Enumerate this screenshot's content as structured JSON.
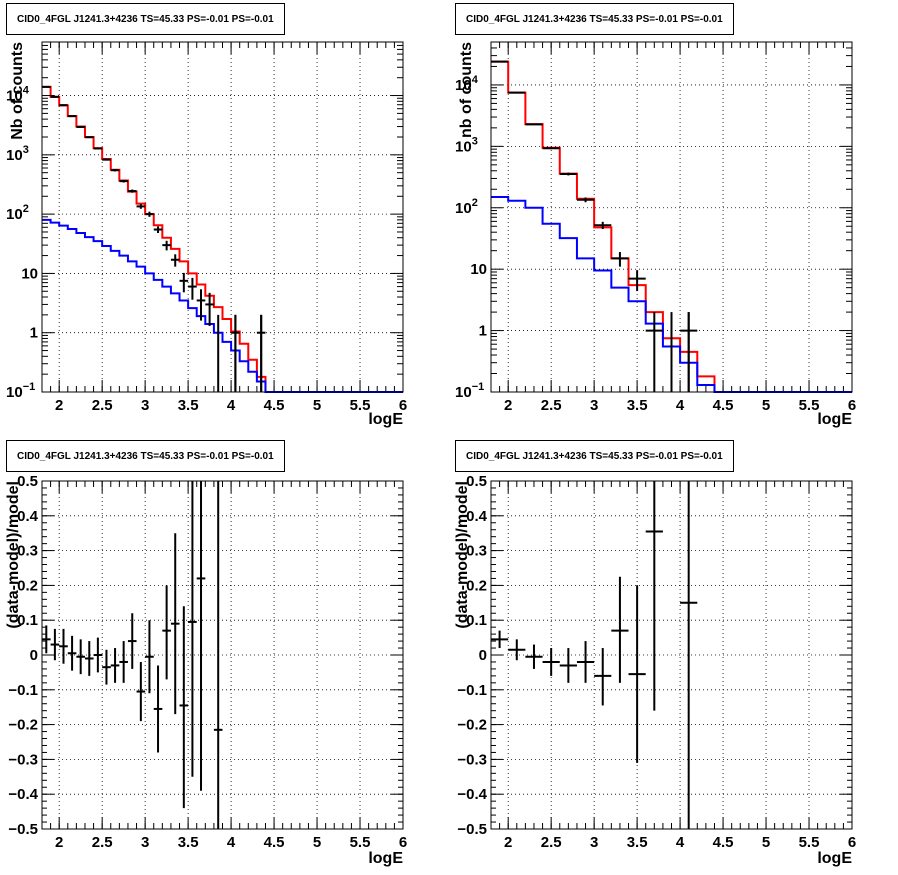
{
  "chart_data": [
    {
      "type": "step",
      "title": "CID0_4FGL J1241.3+4236 TS=45.33 PS=-0.01 PS=-0.01",
      "xlabel": "logE",
      "ylabel": "Nb of counts",
      "xlim": [
        1.8,
        6.0
      ],
      "ylim": [
        0.1,
        80000
      ],
      "yscale": "log",
      "xticks": [
        2,
        2.5,
        3,
        3.5,
        4,
        4.5,
        5,
        5.5,
        6
      ],
      "yticks": [
        {
          "v": 0.1,
          "t": "10",
          "sup": "−1"
        },
        {
          "v": 1,
          "t": "1",
          "sup": ""
        },
        {
          "v": 10,
          "t": "10",
          "sup": ""
        },
        {
          "v": 100,
          "t": "10",
          "sup": "2"
        },
        {
          "v": 1000,
          "t": "10",
          "sup": "3"
        },
        {
          "v": 10000,
          "t": "10",
          "sup": "4"
        }
      ],
      "grid": true,
      "bin_edges": [
        1.8,
        1.9,
        2.0,
        2.1,
        2.2,
        2.3,
        2.4,
        2.5,
        2.6,
        2.7,
        2.8,
        2.9,
        3.0,
        3.1,
        3.2,
        3.3,
        3.4,
        3.5,
        3.6,
        3.7,
        3.8,
        3.9,
        4.0,
        4.1,
        4.2,
        4.3,
        4.4,
        4.5,
        4.6,
        4.7,
        4.8,
        4.9,
        5.0,
        5.1,
        5.2,
        5.3,
        5.4,
        5.5,
        5.6,
        5.7,
        5.8,
        5.9,
        6.0
      ],
      "series": [
        {
          "color": "#ff0000",
          "values": [
            14000,
            9500,
            6800,
            4500,
            3000,
            2000,
            1300,
            850,
            560,
            370,
            240,
            150,
            100,
            65,
            40,
            26,
            16,
            10,
            6.5,
            4.2,
            2.7,
            1.7,
            1.05,
            0.65,
            0.35,
            0.18,
            0.1,
            0.1,
            0.1,
            0.1,
            0.1,
            0.1,
            0.1,
            0.1,
            0.1,
            0.1,
            0.1,
            0.1,
            0.1,
            0.1,
            0.1,
            0.1
          ]
        },
        {
          "color": "#0000ff",
          "values": [
            80,
            72,
            64,
            56,
            48,
            41,
            35,
            29,
            24,
            20,
            16,
            13,
            10,
            7.8,
            6,
            4.6,
            3.5,
            2.6,
            1.9,
            1.4,
            1.0,
            0.7,
            0.5,
            0.33,
            0.22,
            0.15,
            0.1,
            0.1,
            0.1,
            0.1,
            0.1,
            0.1,
            0.1,
            0.1,
            0.1,
            0.1,
            0.1,
            0.1,
            0.1,
            0.1,
            0.1,
            0.1
          ]
        }
      ],
      "points": [
        {
          "x": 1.85,
          "y": 14000,
          "xerr": 0.05,
          "ylo": 13900,
          "yhi": 14100
        },
        {
          "x": 1.95,
          "y": 9500,
          "xerr": 0.05,
          "ylo": 9400,
          "yhi": 9600
        },
        {
          "x": 2.05,
          "y": 6900,
          "xerr": 0.05,
          "ylo": 6800,
          "yhi": 7000
        },
        {
          "x": 2.15,
          "y": 4500,
          "xerr": 0.05,
          "ylo": 4430,
          "yhi": 4570
        },
        {
          "x": 2.25,
          "y": 2950,
          "xerr": 0.05,
          "ylo": 2900,
          "yhi": 3000
        },
        {
          "x": 2.35,
          "y": 1980,
          "xerr": 0.05,
          "ylo": 1940,
          "yhi": 2020
        },
        {
          "x": 2.45,
          "y": 1280,
          "xerr": 0.05,
          "ylo": 1250,
          "yhi": 1310
        },
        {
          "x": 2.55,
          "y": 830,
          "xerr": 0.05,
          "ylo": 800,
          "yhi": 860
        },
        {
          "x": 2.65,
          "y": 550,
          "xerr": 0.05,
          "ylo": 525,
          "yhi": 575
        },
        {
          "x": 2.75,
          "y": 360,
          "xerr": 0.05,
          "ylo": 341,
          "yhi": 379
        },
        {
          "x": 2.85,
          "y": 245,
          "xerr": 0.05,
          "ylo": 230,
          "yhi": 260
        },
        {
          "x": 2.95,
          "y": 135,
          "xerr": 0.05,
          "ylo": 123,
          "yhi": 147
        },
        {
          "x": 3.05,
          "y": 100,
          "xerr": 0.05,
          "ylo": 90,
          "yhi": 110
        },
        {
          "x": 3.15,
          "y": 55,
          "xerr": 0.05,
          "ylo": 48,
          "yhi": 62
        },
        {
          "x": 3.25,
          "y": 30,
          "xerr": 0.05,
          "ylo": 24.5,
          "yhi": 35.5
        },
        {
          "x": 3.35,
          "y": 17,
          "xerr": 0.05,
          "ylo": 13,
          "yhi": 21
        },
        {
          "x": 3.45,
          "y": 7.5,
          "xerr": 0.05,
          "ylo": 4.8,
          "yhi": 10.2
        },
        {
          "x": 3.55,
          "y": 6.0,
          "xerr": 0.05,
          "ylo": 3.6,
          "yhi": 8.4
        },
        {
          "x": 3.65,
          "y": 3.5,
          "xerr": 0.05,
          "ylo": 1.6,
          "yhi": 5.4
        },
        {
          "x": 3.75,
          "y": 3.0,
          "xerr": 0.05,
          "ylo": 1.3,
          "yhi": 4.7
        },
        {
          "x": 4.05,
          "y": 1.0,
          "xerr": 0.05,
          "ylo": 0.1,
          "yhi": 2.0
        },
        {
          "x": 4.35,
          "y": 1.0,
          "xerr": 0.05,
          "ylo": 0.1,
          "yhi": 2.0
        }
      ],
      "stems": [
        3.85,
        4.05,
        4.35
      ]
    },
    {
      "type": "step",
      "title": "CID0_4FGL J1241.3+4236 TS=45.33 PS=-0.01 PS=-0.01",
      "xlabel": "logE",
      "ylabel": "nb of counts",
      "xlim": [
        1.8,
        6.0
      ],
      "ylim": [
        0.1,
        50000
      ],
      "yscale": "log",
      "xticks": [
        2,
        2.5,
        3,
        3.5,
        4,
        4.5,
        5,
        5.5,
        6
      ],
      "yticks": [
        {
          "v": 0.1,
          "t": "10",
          "sup": "−1"
        },
        {
          "v": 1,
          "t": "1",
          "sup": ""
        },
        {
          "v": 10,
          "t": "10",
          "sup": ""
        },
        {
          "v": 100,
          "t": "10",
          "sup": "2"
        },
        {
          "v": 1000,
          "t": "10",
          "sup": "3"
        },
        {
          "v": 10000,
          "t": "10",
          "sup": "4"
        }
      ],
      "grid": true,
      "bin_edges": [
        1.8,
        2.0,
        2.2,
        2.4,
        2.6,
        2.8,
        3.0,
        3.2,
        3.4,
        3.6,
        3.8,
        4.0,
        4.2,
        4.4,
        4.6,
        4.8,
        5.0,
        5.2,
        5.4,
        5.6,
        5.8,
        6.0
      ],
      "series": [
        {
          "color": "#ff0000",
          "values": [
            24000,
            7500,
            2300,
            950,
            360,
            140,
            48,
            15,
            5.5,
            2.0,
            0.75,
            0.45,
            0.18,
            0.1,
            0.1,
            0.1,
            0.1,
            0.1,
            0.1,
            0.1,
            0.1
          ]
        },
        {
          "color": "#0000ff",
          "values": [
            150,
            130,
            100,
            55,
            32,
            15,
            9.5,
            5.0,
            3.0,
            1.3,
            0.55,
            0.3,
            0.13,
            0.1,
            0.1,
            0.1,
            0.1,
            0.1,
            0.1,
            0.1,
            0.1
          ]
        }
      ],
      "points": [
        {
          "x": 1.9,
          "y": 24000,
          "xerr": 0.1,
          "ylo": 23850,
          "yhi": 24150
        },
        {
          "x": 2.1,
          "y": 7500,
          "xerr": 0.1,
          "ylo": 7410,
          "yhi": 7590
        },
        {
          "x": 2.3,
          "y": 2280,
          "xerr": 0.1,
          "ylo": 2230,
          "yhi": 2330
        },
        {
          "x": 2.5,
          "y": 930,
          "xerr": 0.1,
          "ylo": 900,
          "yhi": 960
        },
        {
          "x": 2.7,
          "y": 355,
          "xerr": 0.1,
          "ylo": 336,
          "yhi": 374
        },
        {
          "x": 2.9,
          "y": 135,
          "xerr": 0.1,
          "ylo": 123,
          "yhi": 147
        },
        {
          "x": 3.1,
          "y": 52,
          "xerr": 0.1,
          "ylo": 45,
          "yhi": 59
        },
        {
          "x": 3.3,
          "y": 15,
          "xerr": 0.1,
          "ylo": 11,
          "yhi": 19
        },
        {
          "x": 3.5,
          "y": 7.0,
          "xerr": 0.1,
          "ylo": 4.4,
          "yhi": 9.6
        },
        {
          "x": 3.7,
          "y": 1.0,
          "xerr": 0.1,
          "ylo": 0.1,
          "yhi": 2.0
        },
        {
          "x": 4.1,
          "y": 1.0,
          "xerr": 0.1,
          "ylo": 0.1,
          "yhi": 2.0
        }
      ],
      "stems": [
        3.9,
        4.1
      ]
    },
    {
      "type": "scatter",
      "title": "CID0_4FGL J1241.3+4236 TS=45.33 PS=-0.01 PS=-0.01",
      "xlabel": "logE",
      "ylabel": "(data-model)/model",
      "xlim": [
        1.8,
        6.0
      ],
      "ylim": [
        -0.5,
        0.5
      ],
      "yscale": "linear",
      "xticks": [
        2,
        2.5,
        3,
        3.5,
        4,
        4.5,
        5,
        5.5,
        6
      ],
      "yticks": [
        {
          "v": -0.5,
          "t": "−0.5",
          "sup": ""
        },
        {
          "v": -0.4,
          "t": "−0.4",
          "sup": ""
        },
        {
          "v": -0.3,
          "t": "−0.3",
          "sup": ""
        },
        {
          "v": -0.2,
          "t": "−0.2",
          "sup": ""
        },
        {
          "v": -0.1,
          "t": "−0.1",
          "sup": ""
        },
        {
          "v": 0,
          "t": "0",
          "sup": ""
        },
        {
          "v": 0.1,
          "t": "0.1",
          "sup": ""
        },
        {
          "v": 0.2,
          "t": "0.2",
          "sup": ""
        },
        {
          "v": 0.3,
          "t": "0.3",
          "sup": ""
        },
        {
          "v": 0.4,
          "t": "0.4",
          "sup": ""
        },
        {
          "v": 0.5,
          "t": "0.5",
          "sup": ""
        }
      ],
      "grid": true,
      "points": [
        {
          "x": 1.85,
          "y": 0.045,
          "xerr": 0.05,
          "ylo": 0.005,
          "yhi": 0.085
        },
        {
          "x": 1.95,
          "y": 0.03,
          "xerr": 0.05,
          "ylo": -0.015,
          "yhi": 0.075
        },
        {
          "x": 2.05,
          "y": 0.025,
          "xerr": 0.05,
          "ylo": -0.025,
          "yhi": 0.075
        },
        {
          "x": 2.15,
          "y": 0.005,
          "xerr": 0.05,
          "ylo": -0.045,
          "yhi": 0.055
        },
        {
          "x": 2.25,
          "y": -0.005,
          "xerr": 0.05,
          "ylo": -0.055,
          "yhi": 0.045
        },
        {
          "x": 2.35,
          "y": -0.01,
          "xerr": 0.05,
          "ylo": -0.06,
          "yhi": 0.04
        },
        {
          "x": 2.45,
          "y": 0.0,
          "xerr": 0.05,
          "ylo": -0.05,
          "yhi": 0.05
        },
        {
          "x": 2.55,
          "y": -0.035,
          "xerr": 0.05,
          "ylo": -0.085,
          "yhi": 0.015
        },
        {
          "x": 2.65,
          "y": -0.03,
          "xerr": 0.05,
          "ylo": -0.08,
          "yhi": 0.02
        },
        {
          "x": 2.75,
          "y": -0.02,
          "xerr": 0.05,
          "ylo": -0.08,
          "yhi": 0.04
        },
        {
          "x": 2.85,
          "y": 0.04,
          "xerr": 0.05,
          "ylo": -0.04,
          "yhi": 0.12
        },
        {
          "x": 2.95,
          "y": -0.105,
          "xerr": 0.05,
          "ylo": -0.19,
          "yhi": -0.02
        },
        {
          "x": 3.05,
          "y": -0.005,
          "xerr": 0.05,
          "ylo": -0.11,
          "yhi": 0.1
        },
        {
          "x": 3.15,
          "y": -0.155,
          "xerr": 0.05,
          "ylo": -0.28,
          "yhi": -0.03
        },
        {
          "x": 3.25,
          "y": 0.07,
          "xerr": 0.05,
          "ylo": -0.07,
          "yhi": 0.2
        },
        {
          "x": 3.35,
          "y": 0.09,
          "xerr": 0.05,
          "ylo": -0.17,
          "yhi": 0.35
        },
        {
          "x": 3.45,
          "y": -0.145,
          "xerr": 0.05,
          "ylo": -0.44,
          "yhi": 0.14
        },
        {
          "x": 3.55,
          "y": 0.095,
          "xerr": 0.05,
          "ylo": -0.35,
          "yhi": 0.5
        },
        {
          "x": 3.65,
          "y": 0.22,
          "xerr": 0.05,
          "ylo": -0.39,
          "yhi": 0.5
        },
        {
          "x": 3.85,
          "y": -0.215,
          "xerr": 0.05,
          "ylo": -0.5,
          "yhi": 0.5
        }
      ]
    },
    {
      "type": "scatter",
      "title": "CID0_4FGL J1241.3+4236 TS=45.33 PS=-0.01 PS=-0.01",
      "xlabel": "logE",
      "ylabel": "(data-model)/model",
      "xlim": [
        1.8,
        6.0
      ],
      "ylim": [
        -0.5,
        0.5
      ],
      "yscale": "linear",
      "xticks": [
        2,
        2.5,
        3,
        3.5,
        4,
        4.5,
        5,
        5.5,
        6
      ],
      "yticks": [
        {
          "v": -0.5,
          "t": "−0.5",
          "sup": ""
        },
        {
          "v": -0.4,
          "t": "−0.4",
          "sup": ""
        },
        {
          "v": -0.3,
          "t": "−0.3",
          "sup": ""
        },
        {
          "v": -0.2,
          "t": "−0.2",
          "sup": ""
        },
        {
          "v": -0.1,
          "t": "−0.1",
          "sup": ""
        },
        {
          "v": 0,
          "t": "0",
          "sup": ""
        },
        {
          "v": 0.1,
          "t": "0.1",
          "sup": ""
        },
        {
          "v": 0.2,
          "t": "0.2",
          "sup": ""
        },
        {
          "v": 0.3,
          "t": "0.3",
          "sup": ""
        },
        {
          "v": 0.4,
          "t": "0.4",
          "sup": ""
        },
        {
          "v": 0.5,
          "t": "0.5",
          "sup": ""
        }
      ],
      "grid": true,
      "points": [
        {
          "x": 1.9,
          "y": 0.045,
          "xerr": 0.1,
          "ylo": 0.02,
          "yhi": 0.07
        },
        {
          "x": 2.1,
          "y": 0.015,
          "xerr": 0.1,
          "ylo": -0.015,
          "yhi": 0.045
        },
        {
          "x": 2.3,
          "y": -0.005,
          "xerr": 0.1,
          "ylo": -0.04,
          "yhi": 0.03
        },
        {
          "x": 2.5,
          "y": -0.02,
          "xerr": 0.1,
          "ylo": -0.06,
          "yhi": 0.02
        },
        {
          "x": 2.7,
          "y": -0.03,
          "xerr": 0.1,
          "ylo": -0.08,
          "yhi": 0.02
        },
        {
          "x": 2.9,
          "y": -0.02,
          "xerr": 0.1,
          "ylo": -0.08,
          "yhi": 0.04
        },
        {
          "x": 3.1,
          "y": -0.06,
          "xerr": 0.1,
          "ylo": -0.145,
          "yhi": 0.02
        },
        {
          "x": 3.3,
          "y": 0.07,
          "xerr": 0.1,
          "ylo": -0.08,
          "yhi": 0.225
        },
        {
          "x": 3.5,
          "y": -0.055,
          "xerr": 0.1,
          "ylo": -0.31,
          "yhi": 0.2
        },
        {
          "x": 3.7,
          "y": 0.355,
          "xerr": 0.1,
          "ylo": -0.16,
          "yhi": 0.5
        },
        {
          "x": 4.1,
          "y": 0.15,
          "xerr": 0.1,
          "ylo": -0.5,
          "yhi": 0.5
        }
      ]
    }
  ]
}
